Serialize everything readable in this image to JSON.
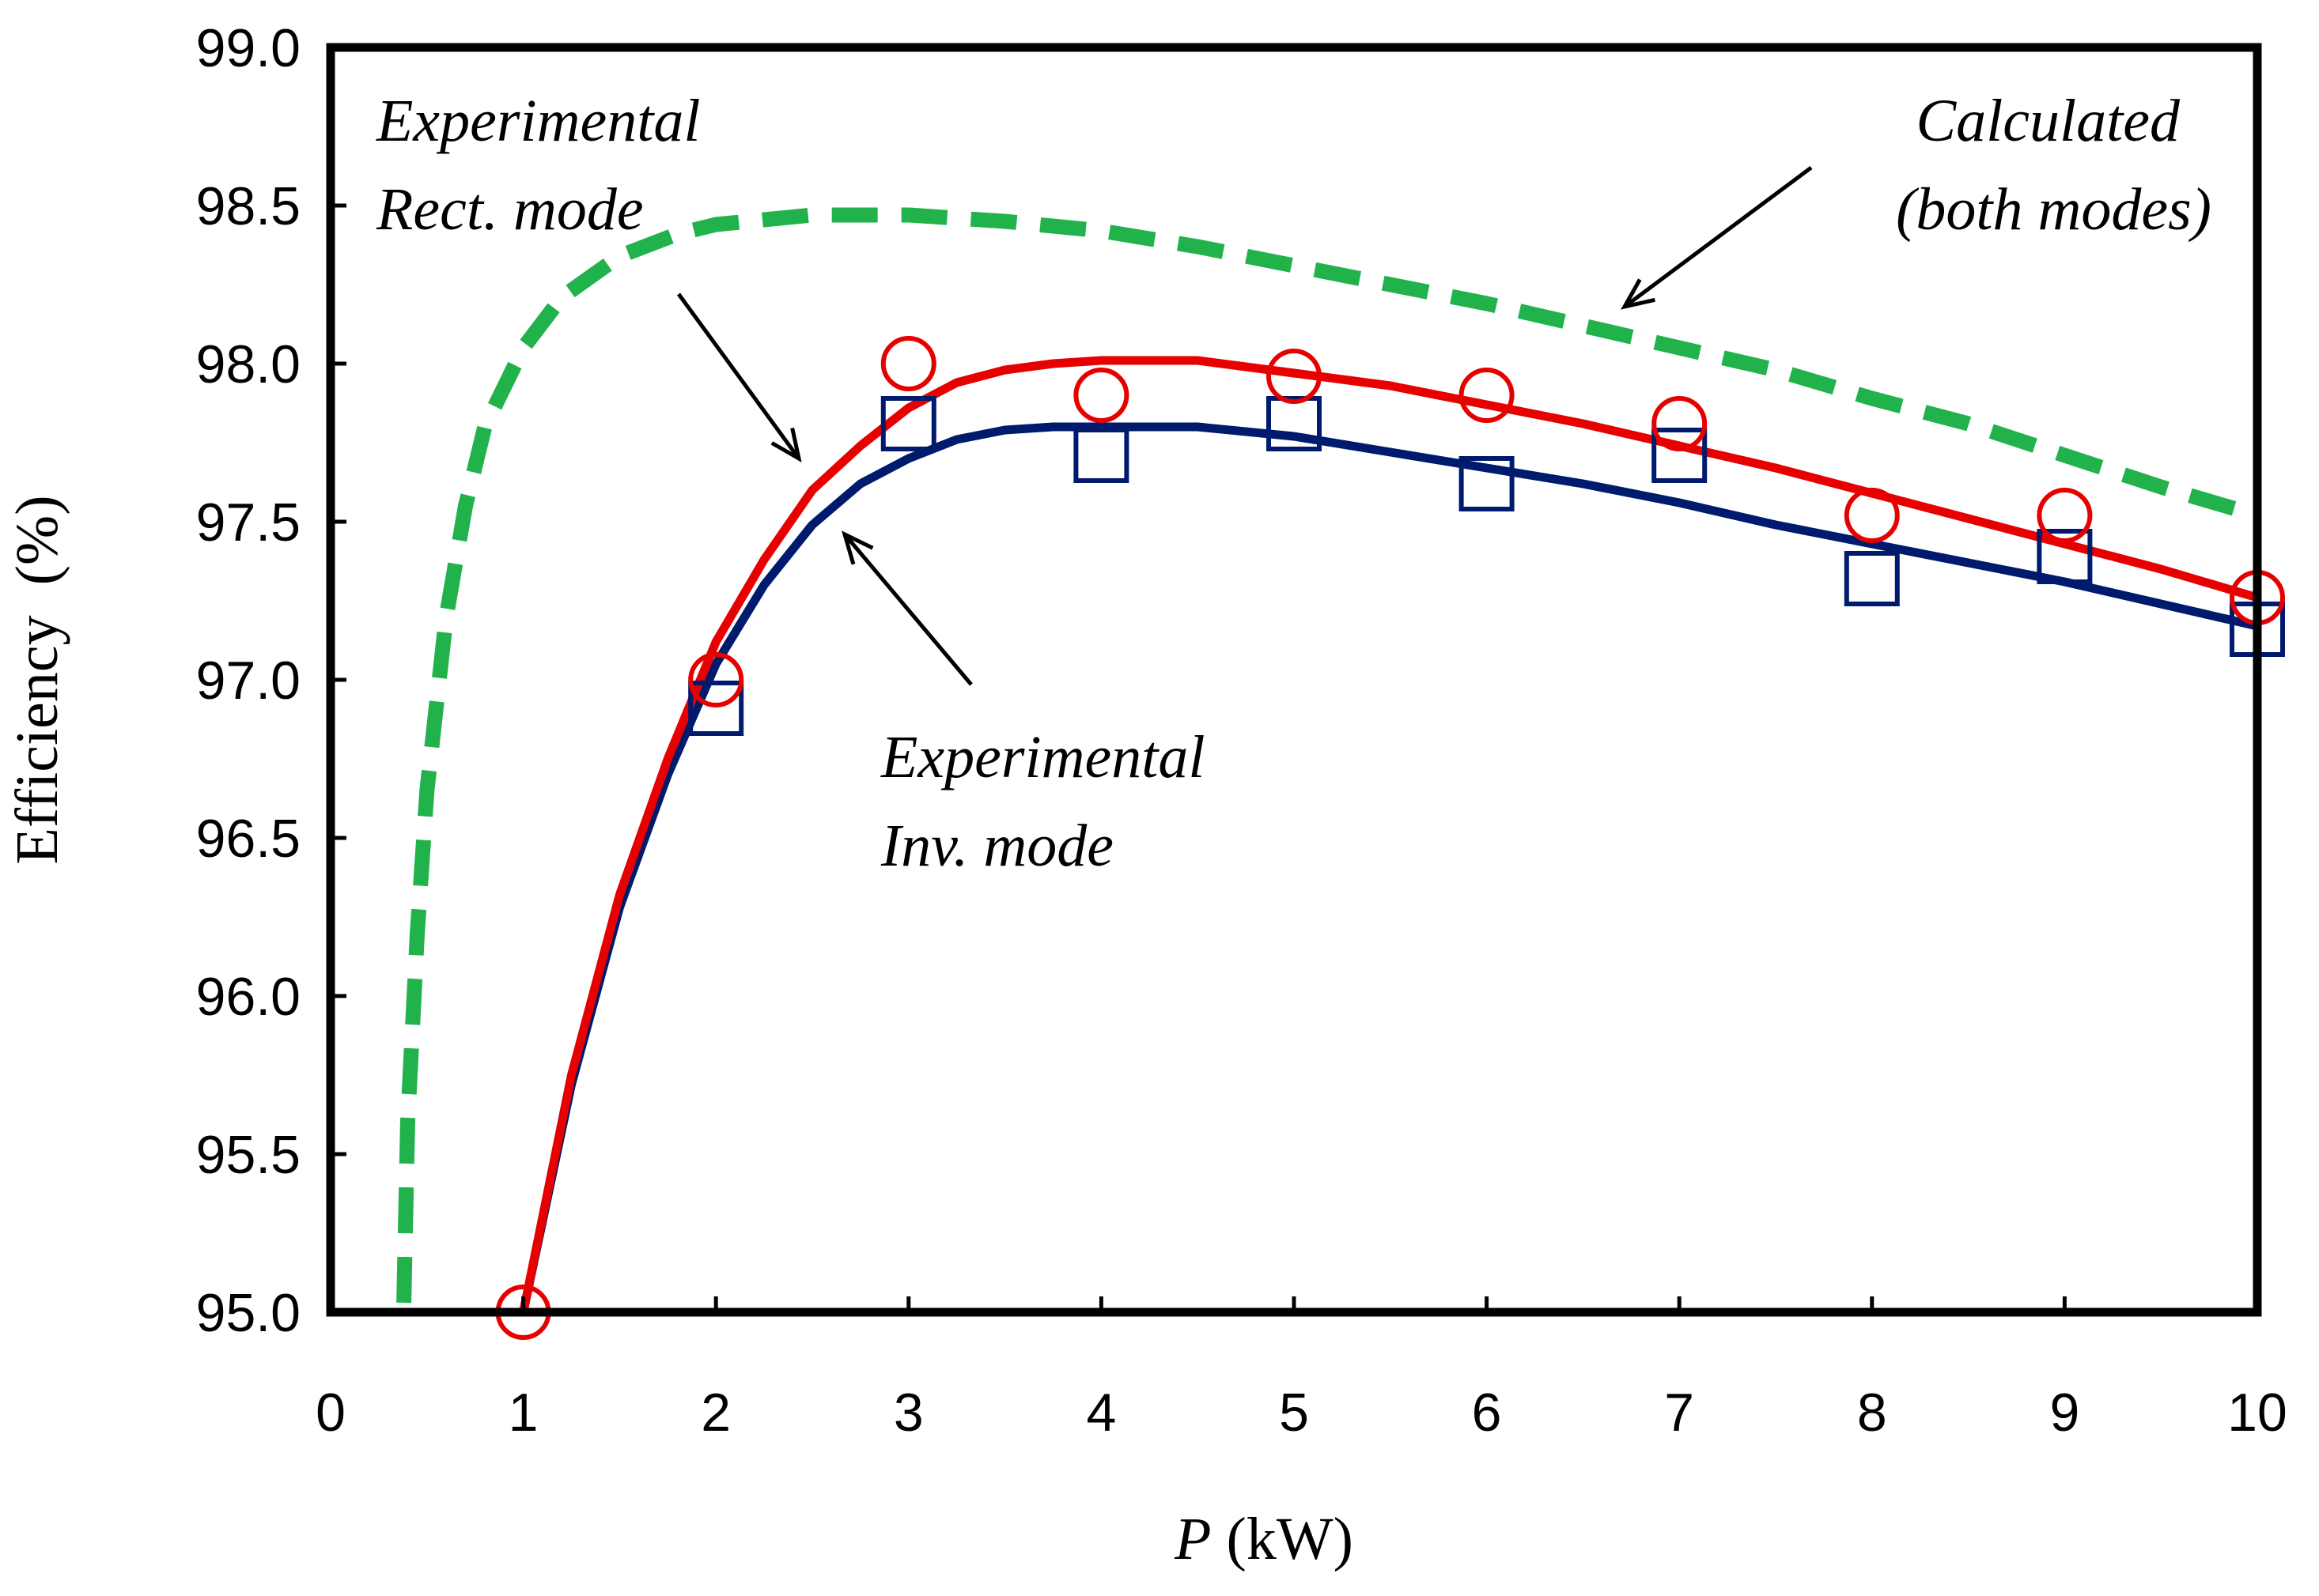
{
  "chart_data": {
    "type": "line",
    "title": "",
    "xlabel_var": "P",
    "xlabel_unit": " (kW)",
    "ylabel": "Efficiency  (%)",
    "xlim": [
      0,
      10
    ],
    "ylim": [
      95.0,
      99.0
    ],
    "xticks": [
      "0",
      "1",
      "2",
      "3",
      "4",
      "5",
      "6",
      "7",
      "8",
      "9",
      "10"
    ],
    "yticks": [
      "95.0",
      "95.5",
      "96.0",
      "96.5",
      "97.0",
      "97.5",
      "98.0",
      "98.5",
      "99.0"
    ],
    "grid": false,
    "colors": {
      "rect": "#e60000",
      "inv": "#001a6e",
      "calc": "#22b24c",
      "axis": "#000000"
    },
    "series": [
      {
        "name": "Experimental Rect. mode (fit)",
        "style": "solid",
        "x": [
          1.0,
          1.25,
          1.5,
          1.75,
          2.0,
          2.25,
          2.5,
          2.75,
          3.0,
          3.25,
          3.5,
          3.75,
          4.0,
          4.5,
          5.0,
          5.5,
          6.0,
          6.5,
          7.0,
          7.5,
          8.0,
          8.5,
          9.0,
          9.5,
          10.0
        ],
        "values": [
          95.0,
          95.75,
          96.32,
          96.75,
          97.12,
          97.38,
          97.6,
          97.74,
          97.86,
          97.94,
          97.98,
          98.0,
          98.01,
          98.01,
          97.97,
          97.93,
          97.87,
          97.81,
          97.74,
          97.67,
          97.59,
          97.51,
          97.43,
          97.35,
          97.26
        ]
      },
      {
        "name": "Experimental Inv. mode (fit)",
        "style": "solid",
        "x": [
          1.0,
          1.25,
          1.5,
          1.75,
          2.0,
          2.25,
          2.5,
          2.75,
          3.0,
          3.25,
          3.5,
          3.75,
          4.0,
          4.5,
          5.0,
          5.5,
          6.0,
          6.5,
          7.0,
          7.5,
          8.0,
          8.5,
          9.0,
          9.5,
          10.0
        ],
        "values": [
          95.0,
          95.72,
          96.28,
          96.7,
          97.05,
          97.3,
          97.49,
          97.62,
          97.7,
          97.76,
          97.79,
          97.8,
          97.8,
          97.8,
          97.77,
          97.72,
          97.67,
          97.62,
          97.56,
          97.49,
          97.43,
          97.37,
          97.31,
          97.24,
          97.17
        ]
      },
      {
        "name": "Calculated (both modes)",
        "style": "dashed",
        "x": [
          0.38,
          0.4,
          0.45,
          0.5,
          0.6,
          0.7,
          0.8,
          1.0,
          1.2,
          1.5,
          1.8,
          2.0,
          2.5,
          3.0,
          3.5,
          4.0,
          4.5,
          5.0,
          5.5,
          6.0,
          6.5,
          7.0,
          7.5,
          8.0,
          8.5,
          9.0,
          9.5,
          10.0
        ],
        "values": [
          95.03,
          95.6,
          96.2,
          96.65,
          97.2,
          97.55,
          97.8,
          98.05,
          98.21,
          98.34,
          98.41,
          98.44,
          98.47,
          98.47,
          98.45,
          98.42,
          98.37,
          98.31,
          98.25,
          98.19,
          98.12,
          98.05,
          97.98,
          97.89,
          97.81,
          97.71,
          97.61,
          97.52
        ]
      }
    ],
    "markers": [
      {
        "name": "Experimental Rect. mode",
        "shape": "circle",
        "x": [
          1,
          2,
          3,
          4,
          5,
          6,
          7,
          8,
          9,
          10
        ],
        "values": [
          95.0,
          97.0,
          98.0,
          97.9,
          97.96,
          97.9,
          97.81,
          97.52,
          97.52,
          97.26
        ]
      },
      {
        "name": "Experimental Inv. mode",
        "shape": "square",
        "x": [
          2,
          3,
          4,
          5,
          6,
          7,
          8,
          9,
          10
        ],
        "values": [
          96.91,
          97.81,
          97.71,
          97.81,
          97.62,
          97.71,
          97.32,
          97.39,
          97.16
        ]
      }
    ],
    "annotations": [
      {
        "lines": [
          "Experimental",
          "Rect. mode"
        ]
      },
      {
        "lines": [
          "Experimental",
          "Inv. mode"
        ]
      },
      {
        "lines": [
          "Calculated",
          "(both modes)"
        ]
      }
    ]
  }
}
